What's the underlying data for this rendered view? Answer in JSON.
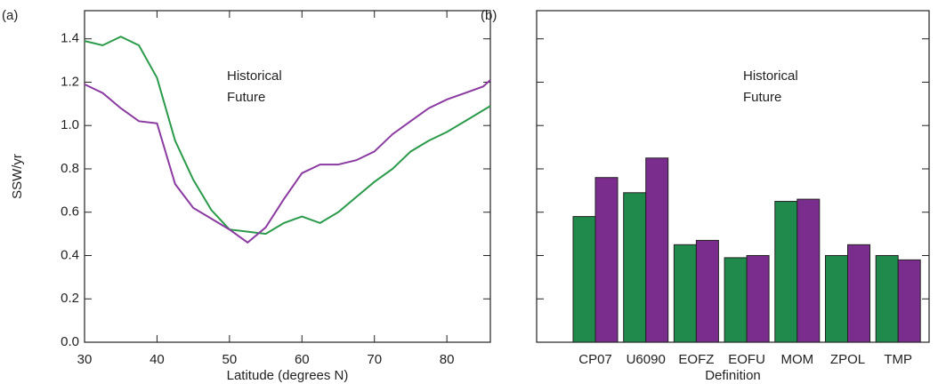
{
  "chart_data": [
    {
      "type": "line",
      "panel_label": "(a)",
      "xlabel": "Latitude (degrees N)",
      "ylabel": "SSW/yr",
      "x": [
        30,
        32.5,
        35,
        37.5,
        40,
        42.5,
        45,
        47.5,
        50,
        52.5,
        55,
        57.5,
        60,
        62.5,
        65,
        67.5,
        70,
        72.5,
        75,
        77.5,
        80,
        82.5,
        85,
        86
      ],
      "series": [
        {
          "name": "Historical",
          "color": "#2a9a4a",
          "values": [
            1.39,
            1.37,
            1.41,
            1.37,
            1.22,
            0.93,
            0.75,
            0.61,
            0.52,
            0.51,
            0.5,
            0.55,
            0.58,
            0.55,
            0.6,
            0.67,
            0.74,
            0.8,
            0.88,
            0.93,
            0.97,
            1.02,
            1.07,
            1.09
          ]
        },
        {
          "name": "Future",
          "color": "#8a3aa0",
          "values": [
            1.19,
            1.15,
            1.08,
            1.02,
            1.01,
            0.73,
            0.62,
            0.57,
            0.52,
            0.46,
            0.53,
            0.66,
            0.78,
            0.82,
            0.82,
            0.84,
            0.88,
            0.96,
            1.02,
            1.08,
            1.12,
            1.15,
            1.18,
            1.21
          ]
        }
      ],
      "xlim": [
        30,
        86
      ],
      "ylim": [
        0,
        1.53
      ],
      "xticks": [
        30,
        40,
        50,
        60,
        70,
        80
      ],
      "yticks": [
        {
          "value": 0,
          "label": "0.0"
        },
        0.2,
        0.4,
        0.6,
        0.8,
        {
          "value": 1,
          "label": "1.0"
        },
        1.2,
        1.4
      ],
      "legend": "upper center"
    },
    {
      "type": "bar",
      "panel_label": "(b)",
      "xlabel": "Definition",
      "categories": [
        "CP07",
        "U6090",
        "EOFZ",
        "EOFU",
        "MOM",
        "ZPOL",
        "TMP"
      ],
      "series": [
        {
          "name": "Historical",
          "color": "#1f8a4c",
          "values": [
            0.58,
            0.69,
            0.45,
            0.39,
            0.65,
            0.4,
            0.4
          ]
        },
        {
          "name": "Future",
          "color": "#7b2d8e",
          "values": [
            0.76,
            0.85,
            0.47,
            0.4,
            0.66,
            0.45,
            0.38
          ]
        }
      ],
      "ylim": [
        0,
        1.53
      ],
      "yticks": [
        0,
        0.2,
        0.4,
        0.6,
        0.8,
        1,
        1.2,
        1.4
      ],
      "legend": "upper center"
    }
  ]
}
